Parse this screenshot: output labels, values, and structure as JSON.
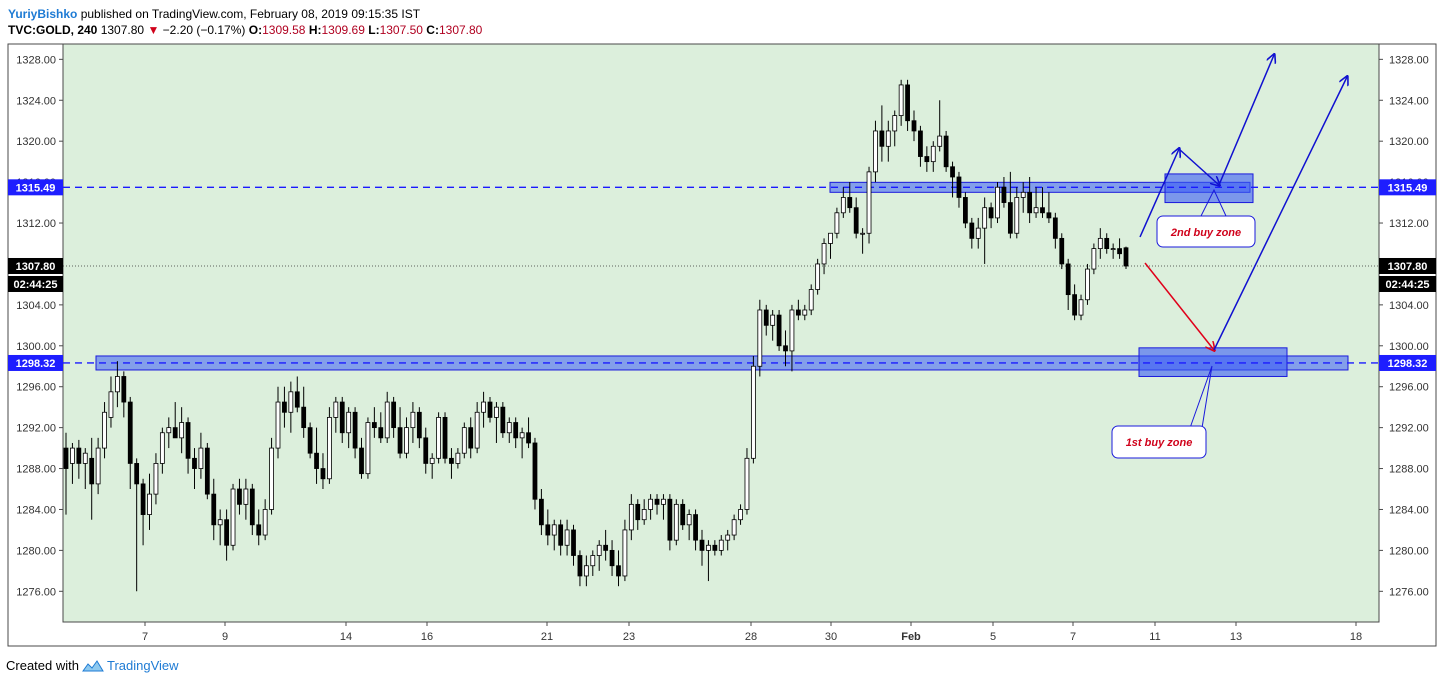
{
  "header": {
    "author": "YuriyBishko",
    "published_text": "published on TradingView.com, February 08, 2019 09:15:35 IST",
    "symbol": "TVC:GOLD, 240",
    "last": "1307.80",
    "change_arrow": "▼",
    "change": "−2.20 (−0.17%)",
    "o_label": "O:",
    "o_value": "1309.58",
    "h_label": "H:",
    "h_value": "1309.69",
    "l_label": "L:",
    "l_value": "1307.50",
    "c_label": "C:",
    "c_value": "1307.80"
  },
  "footer": {
    "created_with": "Created with",
    "brand": "TradingView",
    "logo_icon": "tradingview-logo-icon"
  },
  "colors": {
    "background": "#dcefdc",
    "zone_fill": "#3b5cf5",
    "level_line": "#1a1aff",
    "arrow_blue": "#1010d0",
    "arrow_red": "#e0001a",
    "price_tag": "#1e1eff"
  },
  "chart_data": {
    "type": "candlestick",
    "title": "",
    "ylim": [
      1273,
      1329.5
    ],
    "y_ticks": [
      "1328.00",
      "1324.00",
      "1320.00",
      "1316.00",
      "1312.00",
      "1308.00",
      "1304.00",
      "1300.00",
      "1296.00",
      "1292.00",
      "1288.00",
      "1284.00",
      "1280.00",
      "1276.00"
    ],
    "x_ticks": [
      "7",
      "9",
      "14",
      "16",
      "21",
      "23",
      "28",
      "30",
      "Feb",
      "5",
      "7",
      "11",
      "13",
      "18"
    ],
    "grid": false,
    "levels": [
      {
        "name": "resistance",
        "value": 1315.49,
        "label": "1315.49"
      },
      {
        "name": "support",
        "value": 1298.32,
        "label": "1298.32"
      }
    ],
    "last_price": {
      "label": "1307.80",
      "countdown": "02:44:25",
      "value": 1307.8
    },
    "zones": [
      {
        "label": "2nd buy zone",
        "low": 1314.0,
        "high": 1316.8
      },
      {
        "label": "1st buy zone",
        "low": 1297.0,
        "high": 1299.8
      }
    ],
    "candles": [
      [
        1290.0,
        1291.5,
        1283.5,
        1288.0
      ],
      [
        1288.5,
        1290.5,
        1286.5,
        1290.0
      ],
      [
        1290.0,
        1290.8,
        1287.0,
        1288.5
      ],
      [
        1288.5,
        1290.0,
        1286.0,
        1289.5
      ],
      [
        1289.0,
        1291.0,
        1283.0,
        1286.5
      ],
      [
        1286.5,
        1291.0,
        1285.5,
        1290.0
      ],
      [
        1290.0,
        1294.5,
        1289.0,
        1293.5
      ],
      [
        1293.0,
        1297.0,
        1292.0,
        1295.5
      ],
      [
        1295.5,
        1298.5,
        1294.0,
        1297.0
      ],
      [
        1297.0,
        1297.5,
        1293.0,
        1294.5
      ],
      [
        1294.5,
        1295.0,
        1286.0,
        1288.5
      ],
      [
        1288.5,
        1289.0,
        1276.0,
        1286.5
      ],
      [
        1286.5,
        1287.0,
        1280.5,
        1283.5
      ],
      [
        1283.5,
        1287.5,
        1282.0,
        1285.5
      ],
      [
        1285.5,
        1289.5,
        1284.5,
        1288.5
      ],
      [
        1288.5,
        1292.0,
        1287.5,
        1291.5
      ],
      [
        1291.5,
        1293.0,
        1290.0,
        1292.0
      ],
      [
        1292.0,
        1294.5,
        1291.0,
        1291.0
      ],
      [
        1291.0,
        1294.0,
        1289.5,
        1292.5
      ],
      [
        1292.5,
        1293.0,
        1287.5,
        1289.0
      ],
      [
        1289.0,
        1290.0,
        1286.0,
        1288.0
      ],
      [
        1288.0,
        1291.5,
        1287.0,
        1290.0
      ],
      [
        1290.0,
        1290.5,
        1285.0,
        1285.5
      ],
      [
        1285.5,
        1287.0,
        1281.0,
        1282.5
      ],
      [
        1282.5,
        1284.0,
        1280.5,
        1283.0
      ],
      [
        1283.0,
        1284.0,
        1279.0,
        1280.5
      ],
      [
        1280.5,
        1286.5,
        1280.0,
        1286.0
      ],
      [
        1286.0,
        1287.0,
        1283.5,
        1284.5
      ],
      [
        1284.5,
        1287.0,
        1283.0,
        1286.0
      ],
      [
        1286.0,
        1286.5,
        1281.5,
        1282.5
      ],
      [
        1282.5,
        1284.0,
        1280.5,
        1281.5
      ],
      [
        1281.5,
        1285.0,
        1281.0,
        1284.0
      ],
      [
        1284.0,
        1291.0,
        1283.5,
        1290.0
      ],
      [
        1290.0,
        1296.0,
        1289.0,
        1294.5
      ],
      [
        1294.5,
        1296.0,
        1292.0,
        1293.5
      ],
      [
        1293.5,
        1296.5,
        1291.5,
        1295.5
      ],
      [
        1295.5,
        1297.0,
        1293.5,
        1294.0
      ],
      [
        1294.0,
        1296.0,
        1291.0,
        1292.0
      ],
      [
        1292.0,
        1292.5,
        1289.0,
        1289.5
      ],
      [
        1289.5,
        1292.0,
        1286.5,
        1288.0
      ],
      [
        1288.0,
        1289.5,
        1286.0,
        1287.0
      ],
      [
        1287.0,
        1294.0,
        1286.5,
        1293.0
      ],
      [
        1293.0,
        1295.0,
        1291.5,
        1294.5
      ],
      [
        1294.5,
        1295.0,
        1290.5,
        1291.5
      ],
      [
        1291.5,
        1294.0,
        1290.0,
        1293.5
      ],
      [
        1293.5,
        1294.0,
        1289.0,
        1290.0
      ],
      [
        1290.0,
        1291.0,
        1287.0,
        1287.5
      ],
      [
        1287.5,
        1293.0,
        1287.0,
        1292.5
      ],
      [
        1292.5,
        1294.0,
        1291.0,
        1292.0
      ],
      [
        1292.0,
        1293.5,
        1290.5,
        1291.0
      ],
      [
        1291.0,
        1295.5,
        1290.5,
        1294.5
      ],
      [
        1294.5,
        1295.0,
        1291.0,
        1292.0
      ],
      [
        1292.0,
        1294.0,
        1289.0,
        1289.5
      ],
      [
        1289.5,
        1293.0,
        1289.0,
        1292.0
      ],
      [
        1292.0,
        1294.5,
        1290.5,
        1293.5
      ],
      [
        1293.5,
        1294.0,
        1290.0,
        1291.0
      ],
      [
        1291.0,
        1292.0,
        1287.5,
        1288.5
      ],
      [
        1288.5,
        1289.5,
        1287.0,
        1289.0
      ],
      [
        1289.0,
        1293.5,
        1288.5,
        1293.0
      ],
      [
        1293.0,
        1293.5,
        1288.5,
        1289.0
      ],
      [
        1289.0,
        1290.0,
        1287.0,
        1288.5
      ],
      [
        1288.5,
        1290.0,
        1288.0,
        1289.5
      ],
      [
        1289.5,
        1292.5,
        1289.0,
        1292.0
      ],
      [
        1292.0,
        1293.0,
        1289.0,
        1290.0
      ],
      [
        1290.0,
        1294.5,
        1289.5,
        1293.5
      ],
      [
        1293.5,
        1295.5,
        1292.0,
        1294.5
      ],
      [
        1294.5,
        1295.0,
        1292.5,
        1293.0
      ],
      [
        1293.0,
        1294.5,
        1290.5,
        1294.0
      ],
      [
        1294.0,
        1294.5,
        1291.0,
        1291.5
      ],
      [
        1291.5,
        1293.0,
        1290.5,
        1292.5
      ],
      [
        1292.5,
        1293.0,
        1290.0,
        1291.0
      ],
      [
        1291.0,
        1292.0,
        1289.0,
        1291.5
      ],
      [
        1291.5,
        1293.0,
        1290.0,
        1290.5
      ],
      [
        1290.5,
        1291.0,
        1284.0,
        1285.0
      ],
      [
        1285.0,
        1286.0,
        1281.5,
        1282.5
      ],
      [
        1282.5,
        1284.0,
        1280.5,
        1281.5
      ],
      [
        1281.5,
        1283.0,
        1280.0,
        1282.5
      ],
      [
        1282.5,
        1283.0,
        1279.5,
        1280.5
      ],
      [
        1280.5,
        1283.0,
        1279.5,
        1282.0
      ],
      [
        1282.0,
        1282.5,
        1278.5,
        1279.5
      ],
      [
        1279.5,
        1280.0,
        1276.5,
        1277.5
      ],
      [
        1277.5,
        1279.5,
        1276.5,
        1278.5
      ],
      [
        1278.5,
        1280.0,
        1277.5,
        1279.5
      ],
      [
        1279.5,
        1281.0,
        1278.0,
        1280.5
      ],
      [
        1280.5,
        1282.0,
        1279.0,
        1280.0
      ],
      [
        1280.0,
        1281.0,
        1277.5,
        1278.5
      ],
      [
        1278.5,
        1280.0,
        1276.5,
        1277.5
      ],
      [
        1277.5,
        1283.0,
        1277.0,
        1282.0
      ],
      [
        1282.0,
        1285.5,
        1281.0,
        1284.5
      ],
      [
        1284.5,
        1285.0,
        1282.0,
        1283.0
      ],
      [
        1283.0,
        1285.0,
        1282.5,
        1284.0
      ],
      [
        1284.0,
        1285.5,
        1283.0,
        1285.0
      ],
      [
        1285.0,
        1285.5,
        1283.5,
        1284.5
      ],
      [
        1284.5,
        1285.5,
        1283.0,
        1285.0
      ],
      [
        1285.0,
        1285.5,
        1280.0,
        1281.0
      ],
      [
        1281.0,
        1285.0,
        1280.5,
        1284.5
      ],
      [
        1284.5,
        1285.0,
        1282.0,
        1282.5
      ],
      [
        1282.5,
        1284.0,
        1281.0,
        1283.5
      ],
      [
        1283.5,
        1284.0,
        1280.0,
        1281.0
      ],
      [
        1281.0,
        1282.0,
        1278.5,
        1280.0
      ],
      [
        1280.0,
        1281.0,
        1277.0,
        1280.5
      ],
      [
        1280.5,
        1281.0,
        1279.5,
        1280.0
      ],
      [
        1280.0,
        1281.5,
        1279.5,
        1281.0
      ],
      [
        1281.0,
        1282.0,
        1280.0,
        1281.5
      ],
      [
        1281.5,
        1283.5,
        1281.0,
        1283.0
      ],
      [
        1283.0,
        1284.5,
        1282.5,
        1284.0
      ],
      [
        1284.0,
        1290.0,
        1283.5,
        1289.0
      ],
      [
        1289.0,
        1299.0,
        1288.5,
        1298.0
      ],
      [
        1298.0,
        1304.5,
        1297.0,
        1303.5
      ],
      [
        1303.5,
        1304.0,
        1301.0,
        1302.0
      ],
      [
        1302.0,
        1303.5,
        1300.5,
        1303.0
      ],
      [
        1303.0,
        1303.5,
        1299.5,
        1300.0
      ],
      [
        1300.0,
        1301.5,
        1298.0,
        1299.5
      ],
      [
        1299.5,
        1304.0,
        1297.5,
        1303.5
      ],
      [
        1303.5,
        1304.5,
        1302.5,
        1303.0
      ],
      [
        1303.0,
        1304.0,
        1302.5,
        1303.5
      ],
      [
        1303.5,
        1306.0,
        1303.0,
        1305.5
      ],
      [
        1305.5,
        1308.5,
        1305.0,
        1308.0
      ],
      [
        1308.0,
        1310.5,
        1307.0,
        1310.0
      ],
      [
        1310.0,
        1311.0,
        1308.5,
        1311.0
      ],
      [
        1311.0,
        1313.5,
        1310.5,
        1313.0
      ],
      [
        1313.0,
        1315.5,
        1312.5,
        1314.5
      ],
      [
        1314.5,
        1316.0,
        1313.0,
        1313.5
      ],
      [
        1313.5,
        1314.5,
        1310.5,
        1311.0
      ],
      [
        1311.0,
        1311.5,
        1309.0,
        1311.0
      ],
      [
        1311.0,
        1317.5,
        1310.0,
        1317.0
      ],
      [
        1317.0,
        1322.0,
        1316.0,
        1321.0
      ],
      [
        1321.0,
        1323.5,
        1318.0,
        1319.5
      ],
      [
        1319.5,
        1322.0,
        1318.0,
        1321.0
      ],
      [
        1321.0,
        1323.0,
        1319.5,
        1322.5
      ],
      [
        1322.5,
        1326.0,
        1321.5,
        1325.5
      ],
      [
        1325.5,
        1326.0,
        1321.0,
        1322.0
      ],
      [
        1322.0,
        1323.0,
        1320.0,
        1321.0
      ],
      [
        1321.0,
        1321.5,
        1317.5,
        1318.5
      ],
      [
        1318.5,
        1319.5,
        1317.0,
        1318.0
      ],
      [
        1318.0,
        1320.0,
        1317.0,
        1319.5
      ],
      [
        1319.5,
        1324.0,
        1319.0,
        1320.5
      ],
      [
        1320.5,
        1321.0,
        1317.0,
        1317.5
      ],
      [
        1317.5,
        1318.0,
        1314.5,
        1316.5
      ],
      [
        1316.5,
        1317.0,
        1313.5,
        1314.5
      ],
      [
        1314.5,
        1315.0,
        1311.5,
        1312.0
      ],
      [
        1312.0,
        1312.5,
        1309.5,
        1310.5
      ],
      [
        1310.5,
        1312.5,
        1309.5,
        1311.5
      ],
      [
        1311.5,
        1314.5,
        1308.0,
        1313.5
      ],
      [
        1313.5,
        1314.0,
        1311.5,
        1312.5
      ],
      [
        1312.5,
        1316.0,
        1312.0,
        1315.5
      ],
      [
        1315.5,
        1316.5,
        1313.5,
        1314.0
      ],
      [
        1314.0,
        1317.0,
        1310.5,
        1311.0
      ],
      [
        1311.0,
        1315.5,
        1310.5,
        1314.5
      ],
      [
        1314.5,
        1316.0,
        1313.0,
        1315.0
      ],
      [
        1315.0,
        1316.5,
        1312.0,
        1313.0
      ],
      [
        1313.0,
        1315.5,
        1312.5,
        1313.5
      ],
      [
        1313.5,
        1315.5,
        1312.5,
        1313.0
      ],
      [
        1313.0,
        1315.0,
        1312.0,
        1312.5
      ],
      [
        1312.5,
        1313.0,
        1309.5,
        1310.5
      ],
      [
        1310.5,
        1311.0,
        1307.5,
        1308.0
      ],
      [
        1308.0,
        1308.5,
        1303.5,
        1305.0
      ],
      [
        1305.0,
        1306.0,
        1302.5,
        1303.0
      ],
      [
        1303.0,
        1305.0,
        1302.5,
        1304.5
      ],
      [
        1304.5,
        1308.0,
        1304.0,
        1307.5
      ],
      [
        1307.5,
        1310.0,
        1307.0,
        1309.5
      ],
      [
        1309.5,
        1311.5,
        1308.5,
        1310.5
      ],
      [
        1310.5,
        1311.0,
        1309.0,
        1309.5
      ],
      [
        1309.5,
        1310.0,
        1308.5,
        1309.5
      ],
      [
        1309.5,
        1310.5,
        1308.5,
        1309.0
      ],
      [
        1309.58,
        1309.69,
        1307.5,
        1307.8
      ]
    ]
  }
}
